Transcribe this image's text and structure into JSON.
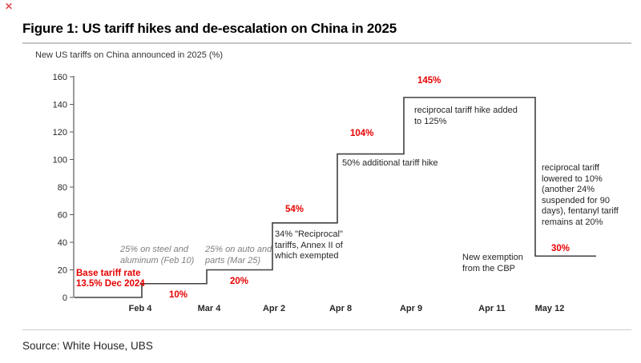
{
  "window": {
    "close_icon": "✕"
  },
  "header": {
    "title": "Figure 1: US tariff hikes and de-escalation on China in 2025"
  },
  "footer": {
    "source": "Source: White House, UBS"
  },
  "colors": {
    "accent_red": "#e60000",
    "step_line": "#404040",
    "gray_note": "#7f7f7f",
    "divider": "#cccccc"
  },
  "chart_data": {
    "type": "line",
    "subtype": "step",
    "title": "New US tariffs on China announced in 2025 (%)",
    "xlabel": "",
    "ylabel": "New US tariffs on China announced in 2025 (%)",
    "ylim": [
      0,
      160
    ],
    "yticks": [
      0,
      20,
      40,
      60,
      80,
      100,
      120,
      140,
      160
    ],
    "grid": false,
    "legend": false,
    "start_value": 0,
    "categories": [
      "Feb 4",
      "Mar 4",
      "Apr 2",
      "Apr 8",
      "Apr 9",
      "Apr 11",
      "May 12"
    ],
    "values": [
      10,
      20,
      54,
      104,
      145,
      145,
      30
    ],
    "annotations": {
      "base_rate": "Base tariff rate\n13.5% Dec 2024",
      "feb4_value": "10%",
      "steel_aluminum": "25% on steel and\naluminum (Feb 10)",
      "mar4_value": "20%",
      "auto_parts": "25% on auto and\nparts (Mar 25)",
      "apr2_value": "54%",
      "reciprocal_34": "34% \"Reciprocal\"\ntariffs, Annex II of\nwhich exempted",
      "apr8_value": "104%",
      "additional_50": "50% additional tariff hike",
      "apr9_value": "145%",
      "hike_125": "reciprocal tariff hike added\nto 125%",
      "lowered_10": "reciprocal tariff\nlowered to 10%\n(another 24%\nsuspended for 90\ndays), fentanyl tariff\nremains at 20%",
      "may12_value": "30%",
      "cbp_exemption": "New exemption\nfrom the CBP"
    }
  }
}
